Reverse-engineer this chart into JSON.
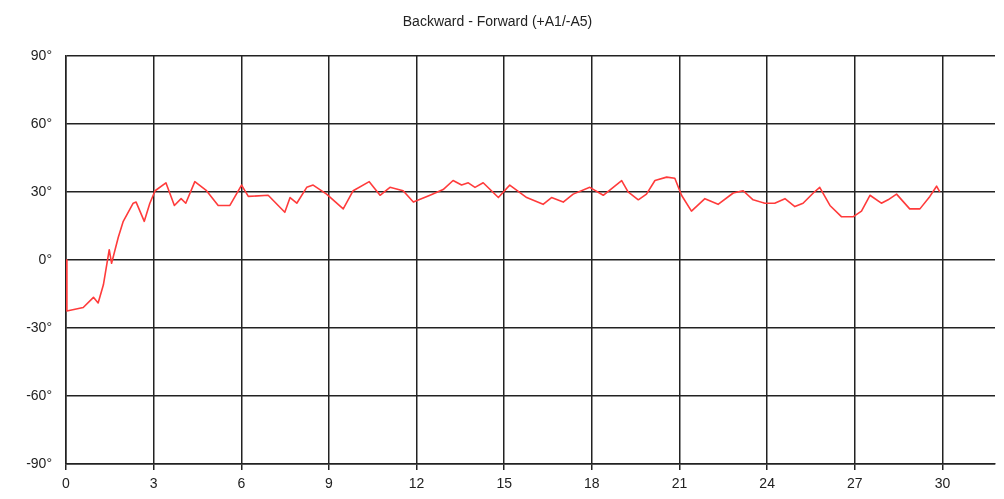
{
  "chart_data": {
    "type": "line",
    "title": "Backward - Forward (+A1/-A5)",
    "series": [
      {
        "color": "#ff3b3b",
        "x": [
          0,
          0.03,
          0.59,
          0.94,
          1.1,
          1.28,
          1.48,
          1.56,
          1.79,
          1.96,
          2.3,
          2.4,
          2.68,
          2.87,
          3.05,
          3.42,
          3.71,
          3.94,
          4.1,
          4.41,
          4.81,
          5.21,
          5.61,
          6.01,
          6.24,
          6.92,
          7.49,
          7.67,
          7.9,
          8.24,
          8.46,
          8.92,
          9.49,
          9.83,
          10.38,
          10.75,
          11.09,
          11.54,
          11.89,
          12.46,
          12.91,
          13.25,
          13.54,
          13.77,
          14,
          14.28,
          14.8,
          15.19,
          15.77,
          16.33,
          16.62,
          17.02,
          17.36,
          17.93,
          18.39,
          19.02,
          19.24,
          19.59,
          19.87,
          20.16,
          20.56,
          20.84,
          21.07,
          21.41,
          21.87,
          22.32,
          22.84,
          23.18,
          23.52,
          23.92,
          24.26,
          24.61,
          24.95,
          25.23,
          25.58,
          25.8,
          26.15,
          26.55,
          26.94,
          27.23,
          27.52,
          27.91,
          28.14,
          28.43,
          28.88,
          29.23,
          29.57,
          29.8,
          29.91
        ],
        "values": [
          0,
          -22.5,
          -21,
          -16.5,
          -19,
          -11,
          4.5,
          -1.5,
          10,
          17,
          25,
          25.5,
          17,
          25,
          30.5,
          34,
          24,
          27,
          25,
          34.5,
          30.5,
          24,
          24,
          33,
          28,
          28.5,
          21,
          27.5,
          25,
          32,
          33,
          29,
          22.5,
          30.5,
          34.5,
          28.5,
          32,
          30.5,
          25.5,
          28.5,
          31,
          35,
          33,
          34,
          32,
          34,
          27.5,
          33,
          27.5,
          24.5,
          27.5,
          25.5,
          29,
          32,
          28.5,
          35,
          30,
          26.5,
          29,
          35,
          36.5,
          36,
          28.5,
          21.5,
          27,
          24.5,
          29.5,
          30.5,
          26.5,
          25,
          25,
          27,
          23.5,
          25,
          29.5,
          32,
          24,
          19,
          19,
          21.5,
          28.5,
          25,
          26.5,
          29,
          22.5,
          22.5,
          28,
          32.5,
          30
        ]
      }
    ],
    "xlim": [
      0,
      31.8
    ],
    "xticks": [
      0,
      3,
      6,
      9,
      12,
      15,
      18,
      21,
      24,
      27,
      30
    ],
    "ylim": [
      -90,
      90
    ],
    "yticks": [
      {
        "value": -90,
        "label": "-90°"
      },
      {
        "value": -60,
        "label": "-60°"
      },
      {
        "value": -30,
        "label": "-30°"
      },
      {
        "value": 0,
        "label": "0°"
      },
      {
        "value": 30,
        "label": "30°"
      },
      {
        "value": 60,
        "label": "60°"
      },
      {
        "value": 90,
        "label": "90°"
      }
    ],
    "grid": true,
    "legend": false,
    "marker": "none",
    "line_style": "solid"
  }
}
